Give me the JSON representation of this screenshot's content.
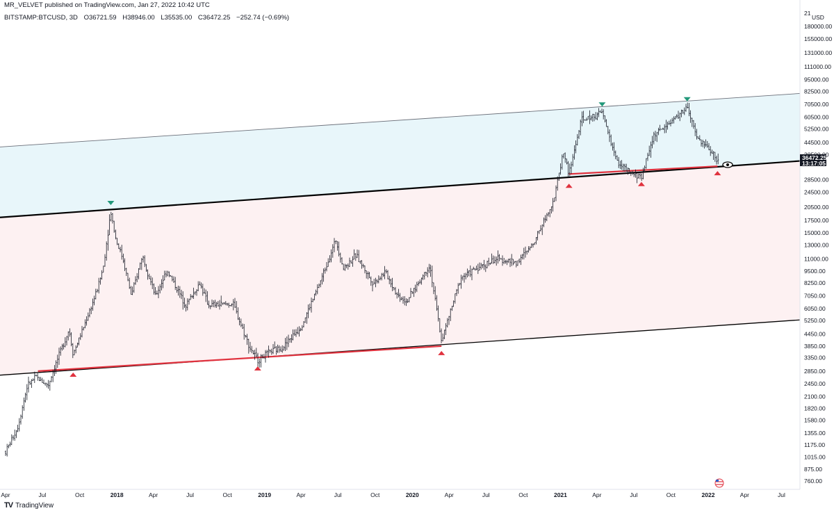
{
  "header": {
    "publisher": "MR_VELVET published on TradingView.com, Jan 27, 2022 10:42 UTC",
    "symbol": "BITSTAMP:BTCUSD, 3D",
    "open": "O36721.59",
    "high": "H38946.00",
    "low": "L35535.00",
    "close": "C36472.25",
    "change": "−252.74 (−0.69%)"
  },
  "footer": {
    "brand": "TradingView"
  },
  "colors": {
    "candle": "#131722",
    "upper_band_fill": "#e8f6fa",
    "lower_band_fill": "#fdf1f2",
    "support_red": "#e0323e",
    "marker_green": "#22987a",
    "marker_red": "#e0323e",
    "price_tag": "#131722"
  },
  "chart_data": {
    "type": "line",
    "description_series": "Bitcoin 3D bar chart (log scale), approximated by close values",
    "scale": "log",
    "ylim": [
      700,
      230000
    ],
    "currency": "USD",
    "y_ticks": [
      "180000.00",
      "155000.00",
      "131000.00",
      "111000.00",
      "95000.00",
      "82500.00",
      "70500.00",
      "60500.00",
      "52500.00",
      "44500.00",
      "38500.00",
      "28500.00",
      "24500.00",
      "20500.00",
      "17500.00",
      "15000.00",
      "13000.00",
      "11000.00",
      "9500.00",
      "8250.00",
      "7050.00",
      "6050.00",
      "5250.00",
      "4450.00",
      "3850.00",
      "3350.00",
      "2850.00",
      "2450.00",
      "2100.00",
      "1820.00",
      "1580.00",
      "1355.00",
      "1175.00",
      "1015.00",
      "875.00",
      "760.00"
    ],
    "y_top_partial": "21",
    "x_ticks": [
      "Apr",
      "Jul",
      "Oct",
      "2018",
      "Apr",
      "Jul",
      "Oct",
      "2019",
      "Apr",
      "Jul",
      "Oct",
      "2020",
      "Apr",
      "Jul",
      "Oct",
      "2021",
      "Apr",
      "Jul",
      "Oct",
      "2022",
      "Apr",
      "Jul"
    ],
    "x_tick_dates": [
      "2017-04-01",
      "2017-07-01",
      "2017-10-01",
      "2018-01-01",
      "2018-04-01",
      "2018-07-01",
      "2018-10-01",
      "2019-01-01",
      "2019-04-01",
      "2019-07-01",
      "2019-10-01",
      "2020-01-01",
      "2020-04-01",
      "2020-07-01",
      "2020-10-01",
      "2021-01-01",
      "2021-04-01",
      "2021-07-01",
      "2021-10-01",
      "2022-01-01",
      "2022-04-01",
      "2022-07-01"
    ],
    "series": [
      {
        "x": [
          "2017-04-01",
          "2017-05-01",
          "2017-05-25",
          "2017-06-15",
          "2017-07-15",
          "2017-08-10",
          "2017-09-05",
          "2017-09-15",
          "2017-10-10",
          "2017-11-10",
          "2017-11-28",
          "2017-12-17",
          "2017-12-30",
          "2018-01-16",
          "2018-02-06",
          "2018-03-05",
          "2018-04-06",
          "2018-05-05",
          "2018-06-20",
          "2018-07-25",
          "2018-08-15",
          "2018-10-15",
          "2018-11-25",
          "2018-12-15",
          "2019-01-15",
          "2019-02-15",
          "2019-04-02",
          "2019-05-15",
          "2019-06-26",
          "2019-07-15",
          "2019-08-15",
          "2019-09-26",
          "2019-10-26",
          "2019-11-25",
          "2019-12-18",
          "2020-02-13",
          "2020-03-13",
          "2020-04-30",
          "2020-06-01",
          "2020-07-27",
          "2020-09-15",
          "2020-10-21",
          "2020-11-30",
          "2020-12-17",
          "2021-01-08",
          "2021-01-22",
          "2021-02-21",
          "2021-03-13",
          "2021-04-14",
          "2021-05-19",
          "2021-06-22",
          "2021-07-20",
          "2021-08-20",
          "2021-09-07",
          "2021-10-20",
          "2021-11-10",
          "2021-12-04",
          "2022-01-10",
          "2022-01-24",
          "2022-01-27"
        ],
        "y": [
          1080,
          1450,
          2400,
          2650,
          2400,
          3400,
          4700,
          3500,
          4800,
          7200,
          9800,
          19500,
          13800,
          11000,
          7000,
          11500,
          7000,
          9600,
          6300,
          8200,
          6300,
          6400,
          3800,
          3250,
          3600,
          3800,
          4900,
          8000,
          13800,
          9800,
          11500,
          8200,
          9400,
          7100,
          6600,
          10200,
          4100,
          8800,
          9600,
          11000,
          10500,
          12800,
          19000,
          23000,
          40000,
          30500,
          58000,
          60000,
          64000,
          36000,
          30500,
          29500,
          49000,
          52000,
          62000,
          68000,
          47000,
          40000,
          35000,
          36472
        ]
      }
    ],
    "trend_channel": {
      "lower_line": {
        "x": [
          "2017-03-01",
          "2022-08-01"
        ],
        "y": [
          2700,
          5250
        ]
      },
      "middle_line": {
        "x": [
          "2017-03-01",
          "2022-08-01"
        ],
        "y": [
          18000,
          35500
        ]
      },
      "upper_line": {
        "x": [
          "2017-03-01",
          "2022-08-01"
        ],
        "y": [
          42000,
          80000
        ]
      }
    },
    "support_lines": [
      {
        "x": [
          "2017-06-20",
          "2020-03-13"
        ],
        "y": [
          2850,
          3850
        ]
      },
      {
        "x": [
          "2021-01-22",
          "2022-01-24"
        ],
        "y": [
          30500,
          33500
        ]
      }
    ],
    "markers_top": [
      {
        "x": "2017-12-17",
        "y": 19800
      },
      {
        "x": "2021-04-14",
        "y": 64800
      },
      {
        "x": "2021-11-10",
        "y": 69000
      }
    ],
    "markers_bottom": [
      {
        "x": "2017-09-15",
        "y": 2970
      },
      {
        "x": "2018-12-15",
        "y": 3200
      },
      {
        "x": "2020-03-13",
        "y": 3850
      },
      {
        "x": "2021-01-22",
        "y": 28800
      },
      {
        "x": "2021-07-20",
        "y": 29400
      },
      {
        "x": "2022-01-24",
        "y": 33500
      }
    ],
    "last_price": "36472.25",
    "countdown": "13:17:05"
  }
}
